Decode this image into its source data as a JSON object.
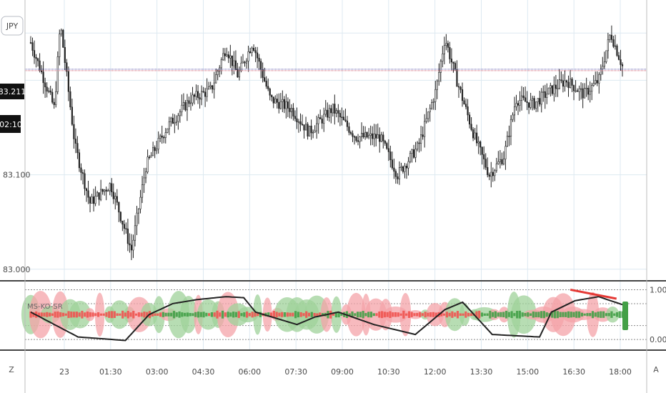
{
  "symbol_badge": "JPY",
  "last_price_label": "83.211",
  "countdown_label": "02:10",
  "indicator_name": "MS-KO-SR",
  "axis_buttons": {
    "left": "Z",
    "right": "A"
  },
  "colors": {
    "background": "#ffffff",
    "grid": "#dde9f1",
    "candle": "#222222",
    "price_line_red": "#d35a6a",
    "price_line_blue": "#5a5ab0",
    "label_bg": "#111111",
    "osc_red": "#f4a3a8",
    "osc_green": "#9fd19a",
    "osc_red_strong": "#ef5350",
    "osc_green_strong": "#43a047",
    "osc_line": "#222222",
    "divergence": "#e53935",
    "separator": "#444444"
  },
  "chart_data": [
    {
      "type": "candlestick",
      "title": "",
      "x_tick_labels": [
        "23",
        "01:30",
        "03:00",
        "04:30",
        "06:00",
        "07:30",
        "09:00",
        "10:30",
        "12:00",
        "13:30",
        "15:00",
        "16:30",
        "18:00"
      ],
      "y_tick_labels": [
        "83.000",
        "83.100"
      ],
      "ylim": [
        82.99,
        83.285
      ],
      "last_price": 83.211,
      "price_path": [
        {
          "t": 0.0,
          "p": 83.24
        },
        {
          "t": 0.04,
          "p": 83.17
        },
        {
          "t": 0.05,
          "p": 83.26
        },
        {
          "t": 0.075,
          "p": 83.13
        },
        {
          "t": 0.1,
          "p": 83.07
        },
        {
          "t": 0.135,
          "p": 83.09
        },
        {
          "t": 0.17,
          "p": 83.02
        },
        {
          "t": 0.195,
          "p": 83.11
        },
        {
          "t": 0.23,
          "p": 83.15
        },
        {
          "t": 0.27,
          "p": 83.18
        },
        {
          "t": 0.305,
          "p": 83.19
        },
        {
          "t": 0.33,
          "p": 83.235
        },
        {
          "t": 0.35,
          "p": 83.205
        },
        {
          "t": 0.375,
          "p": 83.24
        },
        {
          "t": 0.405,
          "p": 83.18
        },
        {
          "t": 0.44,
          "p": 83.17
        },
        {
          "t": 0.47,
          "p": 83.145
        },
        {
          "t": 0.51,
          "p": 83.17
        },
        {
          "t": 0.55,
          "p": 83.14
        },
        {
          "t": 0.59,
          "p": 83.14
        },
        {
          "t": 0.62,
          "p": 83.1
        },
        {
          "t": 0.655,
          "p": 83.13
        },
        {
          "t": 0.685,
          "p": 83.19
        },
        {
          "t": 0.7,
          "p": 83.245
        },
        {
          "t": 0.72,
          "p": 83.2
        },
        {
          "t": 0.75,
          "p": 83.14
        },
        {
          "t": 0.775,
          "p": 83.1
        },
        {
          "t": 0.8,
          "p": 83.12
        },
        {
          "t": 0.82,
          "p": 83.18
        },
        {
          "t": 0.85,
          "p": 83.175
        },
        {
          "t": 0.88,
          "p": 83.19
        },
        {
          "t": 0.905,
          "p": 83.2
        },
        {
          "t": 0.935,
          "p": 83.185
        },
        {
          "t": 0.96,
          "p": 83.2
        },
        {
          "t": 0.98,
          "p": 83.25
        },
        {
          "t": 1.0,
          "p": 83.215
        }
      ],
      "candle_count": 330
    },
    {
      "type": "area",
      "title": "MS-KO-SR",
      "y_tick_labels": [
        "1.00",
        "0.00"
      ],
      "ylim": [
        -0.2,
        1.15
      ],
      "midline": 0.5,
      "note_line_path": [
        {
          "t": 0.0,
          "v": 0.55
        },
        {
          "t": 0.08,
          "v": 0.05
        },
        {
          "t": 0.16,
          "v": -0.02
        },
        {
          "t": 0.2,
          "v": 0.5
        },
        {
          "t": 0.24,
          "v": 0.72
        },
        {
          "t": 0.28,
          "v": 0.8
        },
        {
          "t": 0.33,
          "v": 0.86
        },
        {
          "t": 0.36,
          "v": 0.84
        },
        {
          "t": 0.38,
          "v": 0.55
        },
        {
          "t": 0.45,
          "v": 0.3
        },
        {
          "t": 0.48,
          "v": 0.45
        },
        {
          "t": 0.52,
          "v": 0.55
        },
        {
          "t": 0.58,
          "v": 0.3
        },
        {
          "t": 0.65,
          "v": 0.1
        },
        {
          "t": 0.7,
          "v": 0.6
        },
        {
          "t": 0.73,
          "v": 0.75
        },
        {
          "t": 0.78,
          "v": 0.1
        },
        {
          "t": 0.86,
          "v": 0.05
        },
        {
          "t": 0.88,
          "v": 0.55
        },
        {
          "t": 0.92,
          "v": 0.78
        },
        {
          "t": 0.96,
          "v": 0.86
        },
        {
          "t": 1.0,
          "v": 0.7
        }
      ],
      "divergence_line": [
        {
          "t": 0.912,
          "v": 1.0
        },
        {
          "t": 0.99,
          "v": 0.82
        }
      ]
    }
  ]
}
